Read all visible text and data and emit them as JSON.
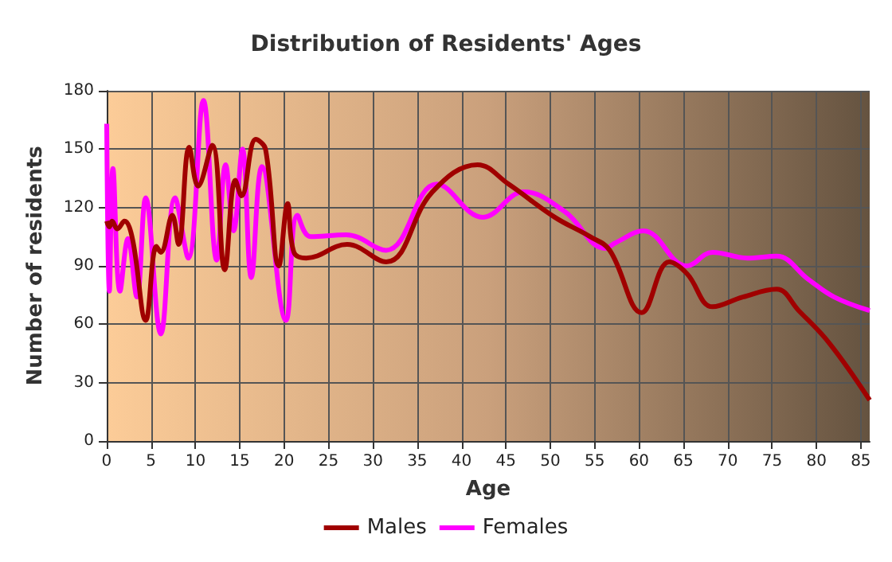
{
  "chart_data": {
    "type": "line",
    "title": "Distribution of Residents' Ages",
    "xlabel": "Age",
    "ylabel": "Number of residents",
    "xlim": [
      0,
      86
    ],
    "xticks": [
      0,
      5,
      10,
      15,
      20,
      25,
      30,
      35,
      40,
      45,
      50,
      55,
      60,
      65,
      70,
      75,
      80,
      85
    ],
    "ylim": [
      0,
      180
    ],
    "yticks": [
      0,
      30,
      60,
      90,
      120,
      150,
      180
    ],
    "grid": true,
    "legend": "bottom",
    "marker": "none",
    "line_style": "solid",
    "series": [
      {
        "name": "Males",
        "color": "#a00000",
        "x": [
          0,
          0.3,
          0.6,
          1.2,
          2,
          2.9,
          4.4,
          5.6,
          6.1,
          7.4,
          8.1,
          9.3,
          10.3,
          11.9,
          13.3,
          14.5,
          15.2,
          16.8,
          17.9,
          19.4,
          20.4,
          21.1,
          22.5,
          27.1,
          31.5,
          36.7,
          41.8,
          45.3,
          50.5,
          54.5,
          56.7,
          60.3,
          63.4,
          65.4,
          68.3,
          71.7,
          75.5,
          78,
          81.5,
          86
        ],
        "values": [
          113,
          110,
          113,
          109,
          113,
          104,
          62,
          100,
          97,
          116,
          101,
          151,
          131,
          152,
          88,
          134,
          126,
          155,
          150,
          90,
          122,
          97,
          94,
          101,
          92,
          128,
          142,
          132,
          115,
          105,
          98,
          66,
          92,
          86,
          69,
          74,
          78,
          67,
          50,
          21
        ]
      },
      {
        "name": "Females",
        "color": "#ff00ff",
        "x": [
          0,
          0.3,
          0.7,
          1.5,
          2.4,
          3.4,
          4.4,
          6.1,
          7.7,
          9.2,
          10.9,
          12.4,
          13.4,
          14.3,
          15.3,
          16.3,
          17.5,
          20.2,
          21.5,
          23,
          27,
          31.5,
          37.2,
          42.4,
          47,
          51.6,
          56.2,
          57.4,
          60.5,
          65.4,
          68.3,
          72.2,
          75.5,
          79.1,
          82,
          86
        ],
        "values": [
          163,
          77,
          140,
          77,
          104,
          74,
          125,
          55,
          125,
          94,
          175,
          93,
          142,
          108,
          150,
          84,
          141,
          62,
          116,
          105,
          106,
          98,
          132,
          115,
          128,
          118,
          99,
          102,
          108,
          90,
          97,
          94,
          95,
          83,
          74,
          67
        ]
      }
    ]
  }
}
